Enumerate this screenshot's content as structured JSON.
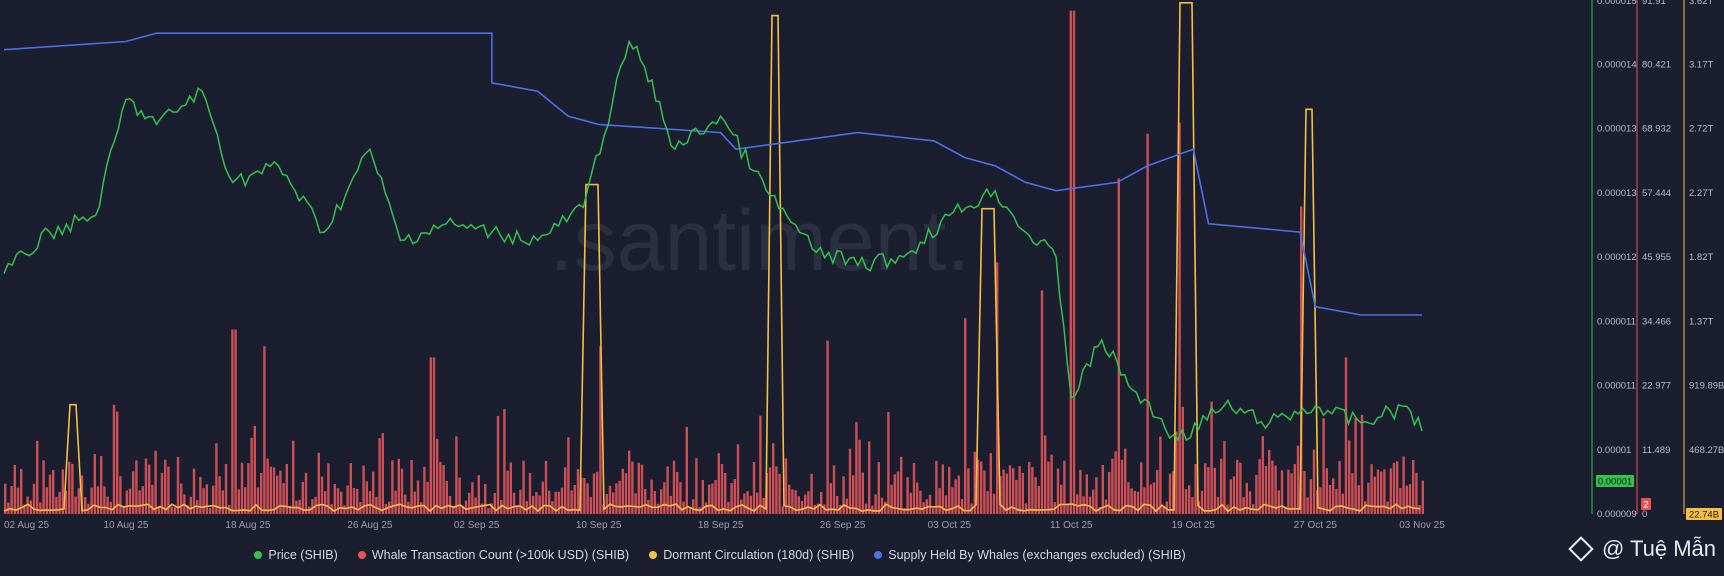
{
  "chart_data": {
    "type": "line",
    "watermark": ".santiment.",
    "x_ticks": [
      "02 Aug 25",
      "10 Aug 25",
      "18 Aug 25",
      "26 Aug 25",
      "02 Sep 25",
      "10 Sep 25",
      "18 Sep 25",
      "26 Sep 25",
      "03 Oct 25",
      "11 Oct 25",
      "19 Oct 25",
      "27 Oct 25",
      "03 Nov 25"
    ],
    "x_range": [
      "2025-08-02",
      "2025-11-03"
    ],
    "price_axis": {
      "ticks": [
        "0.000009",
        "0.00001",
        "0.000011",
        "0.000011",
        "0.000012",
        "0.000013",
        "0.000013",
        "0.000014",
        "0.000015"
      ],
      "badge": "0.00001"
    },
    "whale_tx_axis": {
      "ticks": [
        "0",
        "11.489",
        "22.977",
        "34.466",
        "45.955",
        "57.444",
        "68.932",
        "80.421",
        "91.91"
      ],
      "badge": "2"
    },
    "dormant_axis": {
      "ticks": [
        "22.74B",
        "468.27B",
        "919.89B",
        "1.37T",
        "1.82T",
        "2.27T",
        "2.72T",
        "3.17T",
        "3.62T"
      ],
      "badge": "22.74B"
    },
    "series": [
      {
        "name": "Price (SHIB)",
        "color": "#33c24d",
        "x": [
          "2025-08-02",
          "2025-08-05",
          "2025-08-08",
          "2025-08-10",
          "2025-08-12",
          "2025-08-15",
          "2025-08-17",
          "2025-08-20",
          "2025-08-23",
          "2025-08-26",
          "2025-08-28",
          "2025-08-31",
          "2025-09-03",
          "2025-09-06",
          "2025-09-09",
          "2025-09-12",
          "2025-09-13",
          "2025-09-15",
          "2025-09-18",
          "2025-09-21",
          "2025-09-24",
          "2025-09-27",
          "2025-09-30",
          "2025-10-03",
          "2025-10-06",
          "2025-10-08",
          "2025-10-10",
          "2025-10-11",
          "2025-10-13",
          "2025-10-15",
          "2025-10-18",
          "2025-10-21",
          "2025-10-24",
          "2025-10-27",
          "2025-10-30",
          "2025-11-02",
          "2025-11-03"
        ],
        "values": [
          1.19e-05,
          1.24e-05,
          1.26e-05,
          1.4e-05,
          1.37e-05,
          1.41e-05,
          1.3e-05,
          1.32e-05,
          1.24e-05,
          1.34e-05,
          1.23e-05,
          1.25e-05,
          1.24e-05,
          1.23e-05,
          1.27e-05,
          1.47e-05,
          1.44e-05,
          1.34e-05,
          1.38e-05,
          1.29e-05,
          1.22e-05,
          1.2e-05,
          1.21e-05,
          1.26e-05,
          1.29e-05,
          1.24e-05,
          1.21e-05,
          1.04e-05,
          1.11e-05,
          1.05e-05,
          9.9e-06,
          1.03e-05,
          1.01e-05,
          1.03e-05,
          1.01e-05,
          1.03e-05,
          1e-05
        ]
      },
      {
        "name": "Whale Transaction Count (>100k USD) (SHIB)",
        "color": "#ea5153",
        "peaks": [
          {
            "x": "2025-08-17",
            "v": 33
          },
          {
            "x": "2025-08-19",
            "v": 30
          },
          {
            "x": "2025-08-30",
            "v": 28
          },
          {
            "x": "2025-09-10",
            "v": 30
          },
          {
            "x": "2025-09-25",
            "v": 31
          },
          {
            "x": "2025-10-04",
            "v": 35
          },
          {
            "x": "2025-10-06",
            "v": 45
          },
          {
            "x": "2025-10-09",
            "v": 40
          },
          {
            "x": "2025-10-11",
            "v": 90
          },
          {
            "x": "2025-10-14",
            "v": 60
          },
          {
            "x": "2025-10-16",
            "v": 68
          },
          {
            "x": "2025-10-18",
            "v": 70
          },
          {
            "x": "2025-10-26",
            "v": 55
          },
          {
            "x": "2025-10-29",
            "v": 28
          }
        ]
      },
      {
        "name": "Dormant Circulation (180d) (SHIB)",
        "color": "#f3c043",
        "spikes": [
          {
            "start": "2025-08-06",
            "end": "2025-08-07",
            "v": 0.77
          },
          {
            "start": "2025-09-09",
            "end": "2025-09-10",
            "v": 2.32
          },
          {
            "start": "2025-09-21",
            "end": "2025-09-22",
            "v": 3.51
          },
          {
            "start": "2025-10-05",
            "end": "2025-10-06",
            "v": 2.15
          },
          {
            "start": "2025-10-18",
            "end": "2025-10-19",
            "v": 3.6
          },
          {
            "start": "2025-10-26",
            "end": "2025-10-27",
            "v": 2.85
          }
        ]
      },
      {
        "name": "Supply Held By Whales (exchanges excluded) (SHIB)",
        "color": "#4a72e8",
        "x": [
          "2025-08-02",
          "2025-08-10",
          "2025-08-12",
          "2025-08-25",
          "2025-09-03",
          "2025-09-03",
          "2025-09-06",
          "2025-09-08",
          "2025-09-10",
          "2025-09-18",
          "2025-09-19",
          "2025-09-27",
          "2025-10-02",
          "2025-10-04",
          "2025-10-06",
          "2025-10-08",
          "2025-10-10",
          "2025-10-14",
          "2025-10-16",
          "2025-10-19",
          "2025-10-20",
          "2025-10-26",
          "2025-10-27",
          "2025-10-30",
          "2025-11-03"
        ],
        "values": [
          0.56,
          0.57,
          0.58,
          0.58,
          0.58,
          0.52,
          0.51,
          0.48,
          0.47,
          0.46,
          0.44,
          0.46,
          0.45,
          0.43,
          0.42,
          0.4,
          0.39,
          0.4,
          0.42,
          0.44,
          0.35,
          0.34,
          0.25,
          0.24,
          0.24
        ]
      }
    ]
  },
  "legend": {
    "price": "Price (SHIB)",
    "whale_tx": "Whale Transaction Count (>100k USD) (SHIB)",
    "dormant": "Dormant Circulation (180d) (SHIB)",
    "supply": "Supply Held By Whales (exchanges excluded) (SHIB)"
  },
  "credit": "@ Tuệ Mẫn",
  "colors": {
    "background": "#1a1e2e",
    "price": "#33c24d",
    "whale_tx": "#ea5153",
    "dormant": "#f3c043",
    "supply": "#4a72e8",
    "text": "#d6d9e2"
  }
}
